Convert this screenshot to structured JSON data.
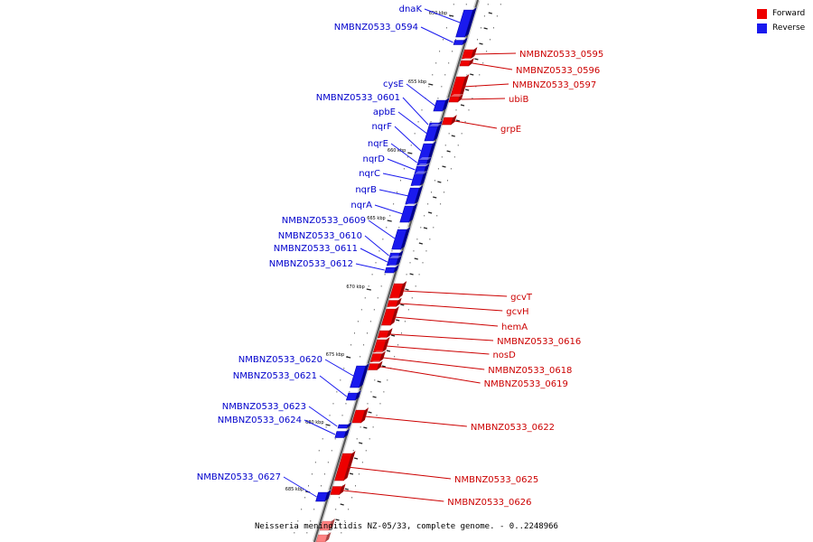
{
  "caption": "Neisseria meningitidis NZ-05/33, complete genome. - 0..2248966",
  "legend": {
    "forward": {
      "label": "Forward",
      "color": "#ee0000"
    },
    "reverse": {
      "label": "Reverse",
      "color": "#1a1aee"
    }
  },
  "ticks": [
    "650 kbp",
    "655 kbp",
    "660 kbp",
    "665 kbp",
    "670 kbp",
    "675 kbp",
    "680 kbp",
    "685 kbp"
  ],
  "forward_genes": [
    "NMBNZ0533_0595",
    "NMBNZ0533_0596",
    "NMBNZ0533_0597",
    "ubiB",
    "grpE",
    "gcvT",
    "gcvH",
    "hemA",
    "NMBNZ0533_0616",
    "nosD",
    "NMBNZ0533_0618",
    "NMBNZ0533_0619",
    "NMBNZ0533_0622",
    "NMBNZ0533_0625",
    "NMBNZ0533_0626"
  ],
  "reverse_genes": [
    "dnaK",
    "NMBNZ0533_0594",
    "cysE",
    "NMBNZ0533_0601",
    "apbE",
    "nqrF",
    "nqrE",
    "nqrD",
    "nqrC",
    "nqrB",
    "nqrA",
    "NMBNZ0533_0609",
    "NMBNZ0533_0610",
    "NMBNZ0533_0611",
    "NMBNZ0533_0612",
    "NMBNZ0533_0620",
    "NMBNZ0533_0621",
    "NMBNZ0533_0623",
    "NMBNZ0533_0624",
    "NMBNZ0533_0627"
  ]
}
